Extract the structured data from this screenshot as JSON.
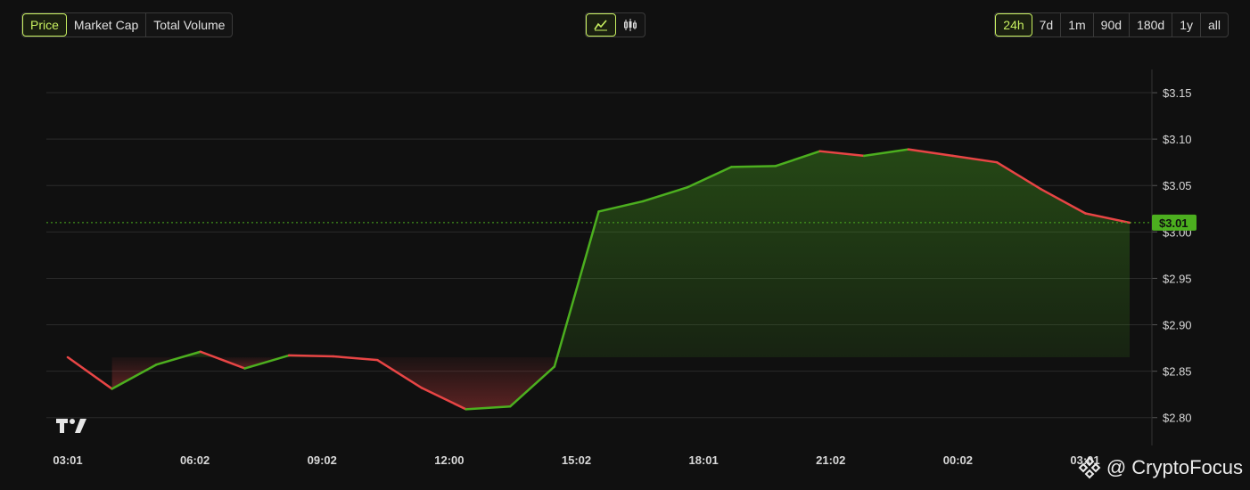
{
  "metric_tabs": [
    {
      "label": "Price",
      "active": true
    },
    {
      "label": "Market Cap",
      "active": false
    },
    {
      "label": "Total Volume",
      "active": false
    }
  ],
  "chart_type": {
    "line_icon": "line-chart-icon",
    "candle_icon": "candlestick-chart-icon",
    "active": "line"
  },
  "range_tabs": [
    {
      "label": "24h",
      "active": true
    },
    {
      "label": "7d",
      "active": false
    },
    {
      "label": "1m",
      "active": false
    },
    {
      "label": "90d",
      "active": false
    },
    {
      "label": "180d",
      "active": false
    },
    {
      "label": "1y",
      "active": false
    },
    {
      "label": "all",
      "active": false
    }
  ],
  "colors": {
    "up": "#4caf1f",
    "down": "#e84545",
    "accent": "#c8f060",
    "grid": "#2a2a2a",
    "current_tag": "#4caf1f"
  },
  "current_price_label": "$3.01",
  "watermark": {
    "text": "@ CryptoFocus",
    "icon": "binance-logo-icon"
  },
  "tv_logo": "tradingview-logo-icon",
  "chart_data": {
    "type": "line",
    "baseline": 2.865,
    "current": 3.01,
    "ylim": [
      2.77,
      3.175
    ],
    "yticks": [
      "$3.15",
      "$3.10",
      "$3.05",
      "$3.00",
      "$2.95",
      "$2.90",
      "$2.85",
      "$2.80"
    ],
    "ytick_values": [
      3.15,
      3.1,
      3.05,
      3.0,
      2.95,
      2.9,
      2.85,
      2.8
    ],
    "xticks": [
      "03:01",
      "06:02",
      "09:02",
      "12:00",
      "15:02",
      "18:01",
      "21:02",
      "00:02",
      "03:01"
    ],
    "series": [
      {
        "values": [
          2.865,
          2.831,
          2.857,
          2.871,
          2.853,
          2.867,
          2.866,
          2.862,
          2.832,
          2.809,
          2.812,
          2.855,
          3.022,
          3.033,
          3.048,
          3.07,
          3.071,
          3.087,
          3.082,
          3.089,
          3.082,
          3.075,
          3.046,
          3.02,
          3.01
        ]
      }
    ],
    "grid": true
  }
}
